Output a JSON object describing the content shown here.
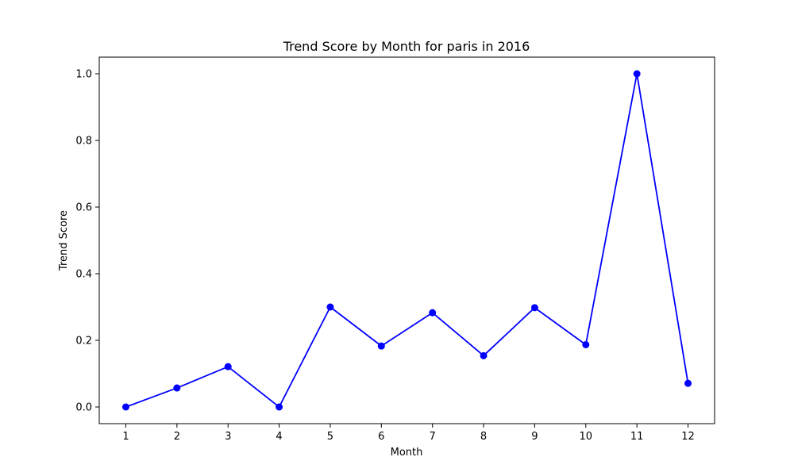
{
  "chart_data": {
    "type": "line",
    "title": "Trend Score by Month for paris in 2016",
    "xlabel": "Month",
    "ylabel": "Trend Score",
    "x": [
      1,
      2,
      3,
      4,
      5,
      6,
      7,
      8,
      9,
      10,
      11,
      12
    ],
    "series": [
      {
        "values": [
          0.0,
          0.057,
          0.121,
          0.0,
          0.3,
          0.183,
          0.283,
          0.154,
          0.298,
          0.187,
          1.0,
          0.071
        ]
      }
    ],
    "xlim": [
      0.48,
      12.52
    ],
    "ylim": [
      -0.05,
      1.05
    ],
    "xticks": [
      1,
      2,
      3,
      4,
      5,
      6,
      7,
      8,
      9,
      10,
      11,
      12
    ],
    "yticks": [
      "0.0",
      "0.2",
      "0.4",
      "0.6",
      "0.8",
      "1.0"
    ],
    "line_color": "#0000ff",
    "marker": "circle",
    "grid": false,
    "legend": false
  }
}
